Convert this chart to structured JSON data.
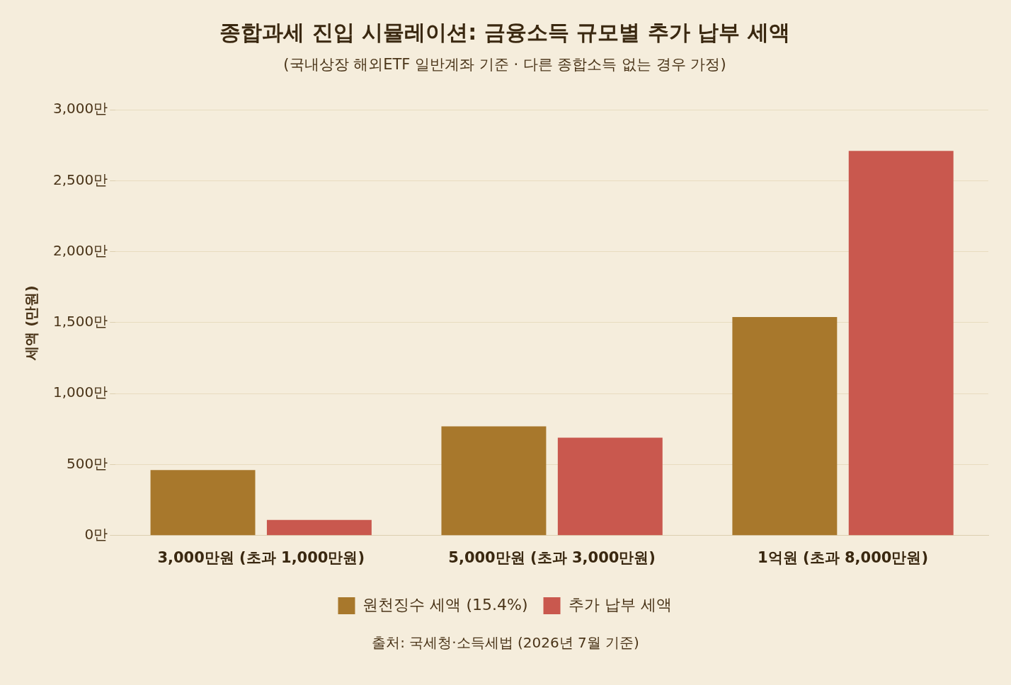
{
  "chart_data": {
    "type": "bar",
    "title": "종합과세 진입 시뮬레이션: 금융소득 규모별 추가 납부 세액",
    "subtitle": "(국내상장 해외ETF 일반계좌 기준 · 다른 종합소득 없는 경우 가정)",
    "ylabel": "세액 (만원)",
    "categories": [
      "3,000만원 (초과 1,000만원)",
      "5,000만원 (초과 3,000만원)",
      "1억원 (초과 8,000만원)"
    ],
    "series": [
      {
        "name": "원천징수 세액 (15.4%)",
        "color": "#a8782c",
        "values": [
          462,
          770,
          1540
        ]
      },
      {
        "name": "추가 납부 세액",
        "color": "#c9584e",
        "values": [
          110,
          690,
          2710
        ]
      }
    ],
    "ylim": [
      0,
      3000
    ],
    "yticks": [
      {
        "value": 0,
        "label": "0만"
      },
      {
        "value": 500,
        "label": "500만"
      },
      {
        "value": 1000,
        "label": "1,000만"
      },
      {
        "value": 1500,
        "label": "1,500만"
      },
      {
        "value": 2000,
        "label": "2,000만"
      },
      {
        "value": 2500,
        "label": "2,500만"
      },
      {
        "value": 3000,
        "label": "3,000만"
      }
    ],
    "grid": "y",
    "legend": "bottom",
    "annotations": [
      "출처: 국세청·소득세법 (2026년 7월 기준)"
    ]
  }
}
